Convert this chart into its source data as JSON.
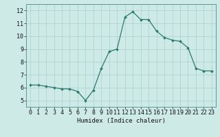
{
  "x": [
    0,
    1,
    2,
    3,
    4,
    5,
    6,
    7,
    8,
    9,
    10,
    11,
    12,
    13,
    14,
    15,
    16,
    17,
    18,
    19,
    20,
    21,
    22,
    23
  ],
  "y": [
    6.2,
    6.2,
    6.1,
    6.0,
    5.9,
    5.9,
    5.7,
    5.0,
    5.8,
    7.5,
    8.8,
    9.0,
    11.5,
    11.9,
    11.3,
    11.3,
    10.4,
    9.9,
    9.7,
    9.6,
    9.1,
    7.5,
    7.3,
    7.3
  ],
  "line_color": "#2a7a6e",
  "marker": "D",
  "markersize": 2.0,
  "linewidth": 0.9,
  "bg_color": "#ceeae6",
  "grid_color": "#aacfca",
  "xlabel": "Humidex (Indice chaleur)",
  "xlabel_fontsize": 6.5,
  "tick_fontsize": 6,
  "xlim": [
    -0.5,
    23.5
  ],
  "ylim": [
    4.5,
    12.5
  ],
  "yticks": [
    5,
    6,
    7,
    8,
    9,
    10,
    11,
    12
  ],
  "xticks": [
    0,
    1,
    2,
    3,
    4,
    5,
    6,
    7,
    8,
    9,
    10,
    11,
    12,
    13,
    14,
    15,
    16,
    17,
    18,
    19,
    20,
    21,
    22,
    23
  ]
}
